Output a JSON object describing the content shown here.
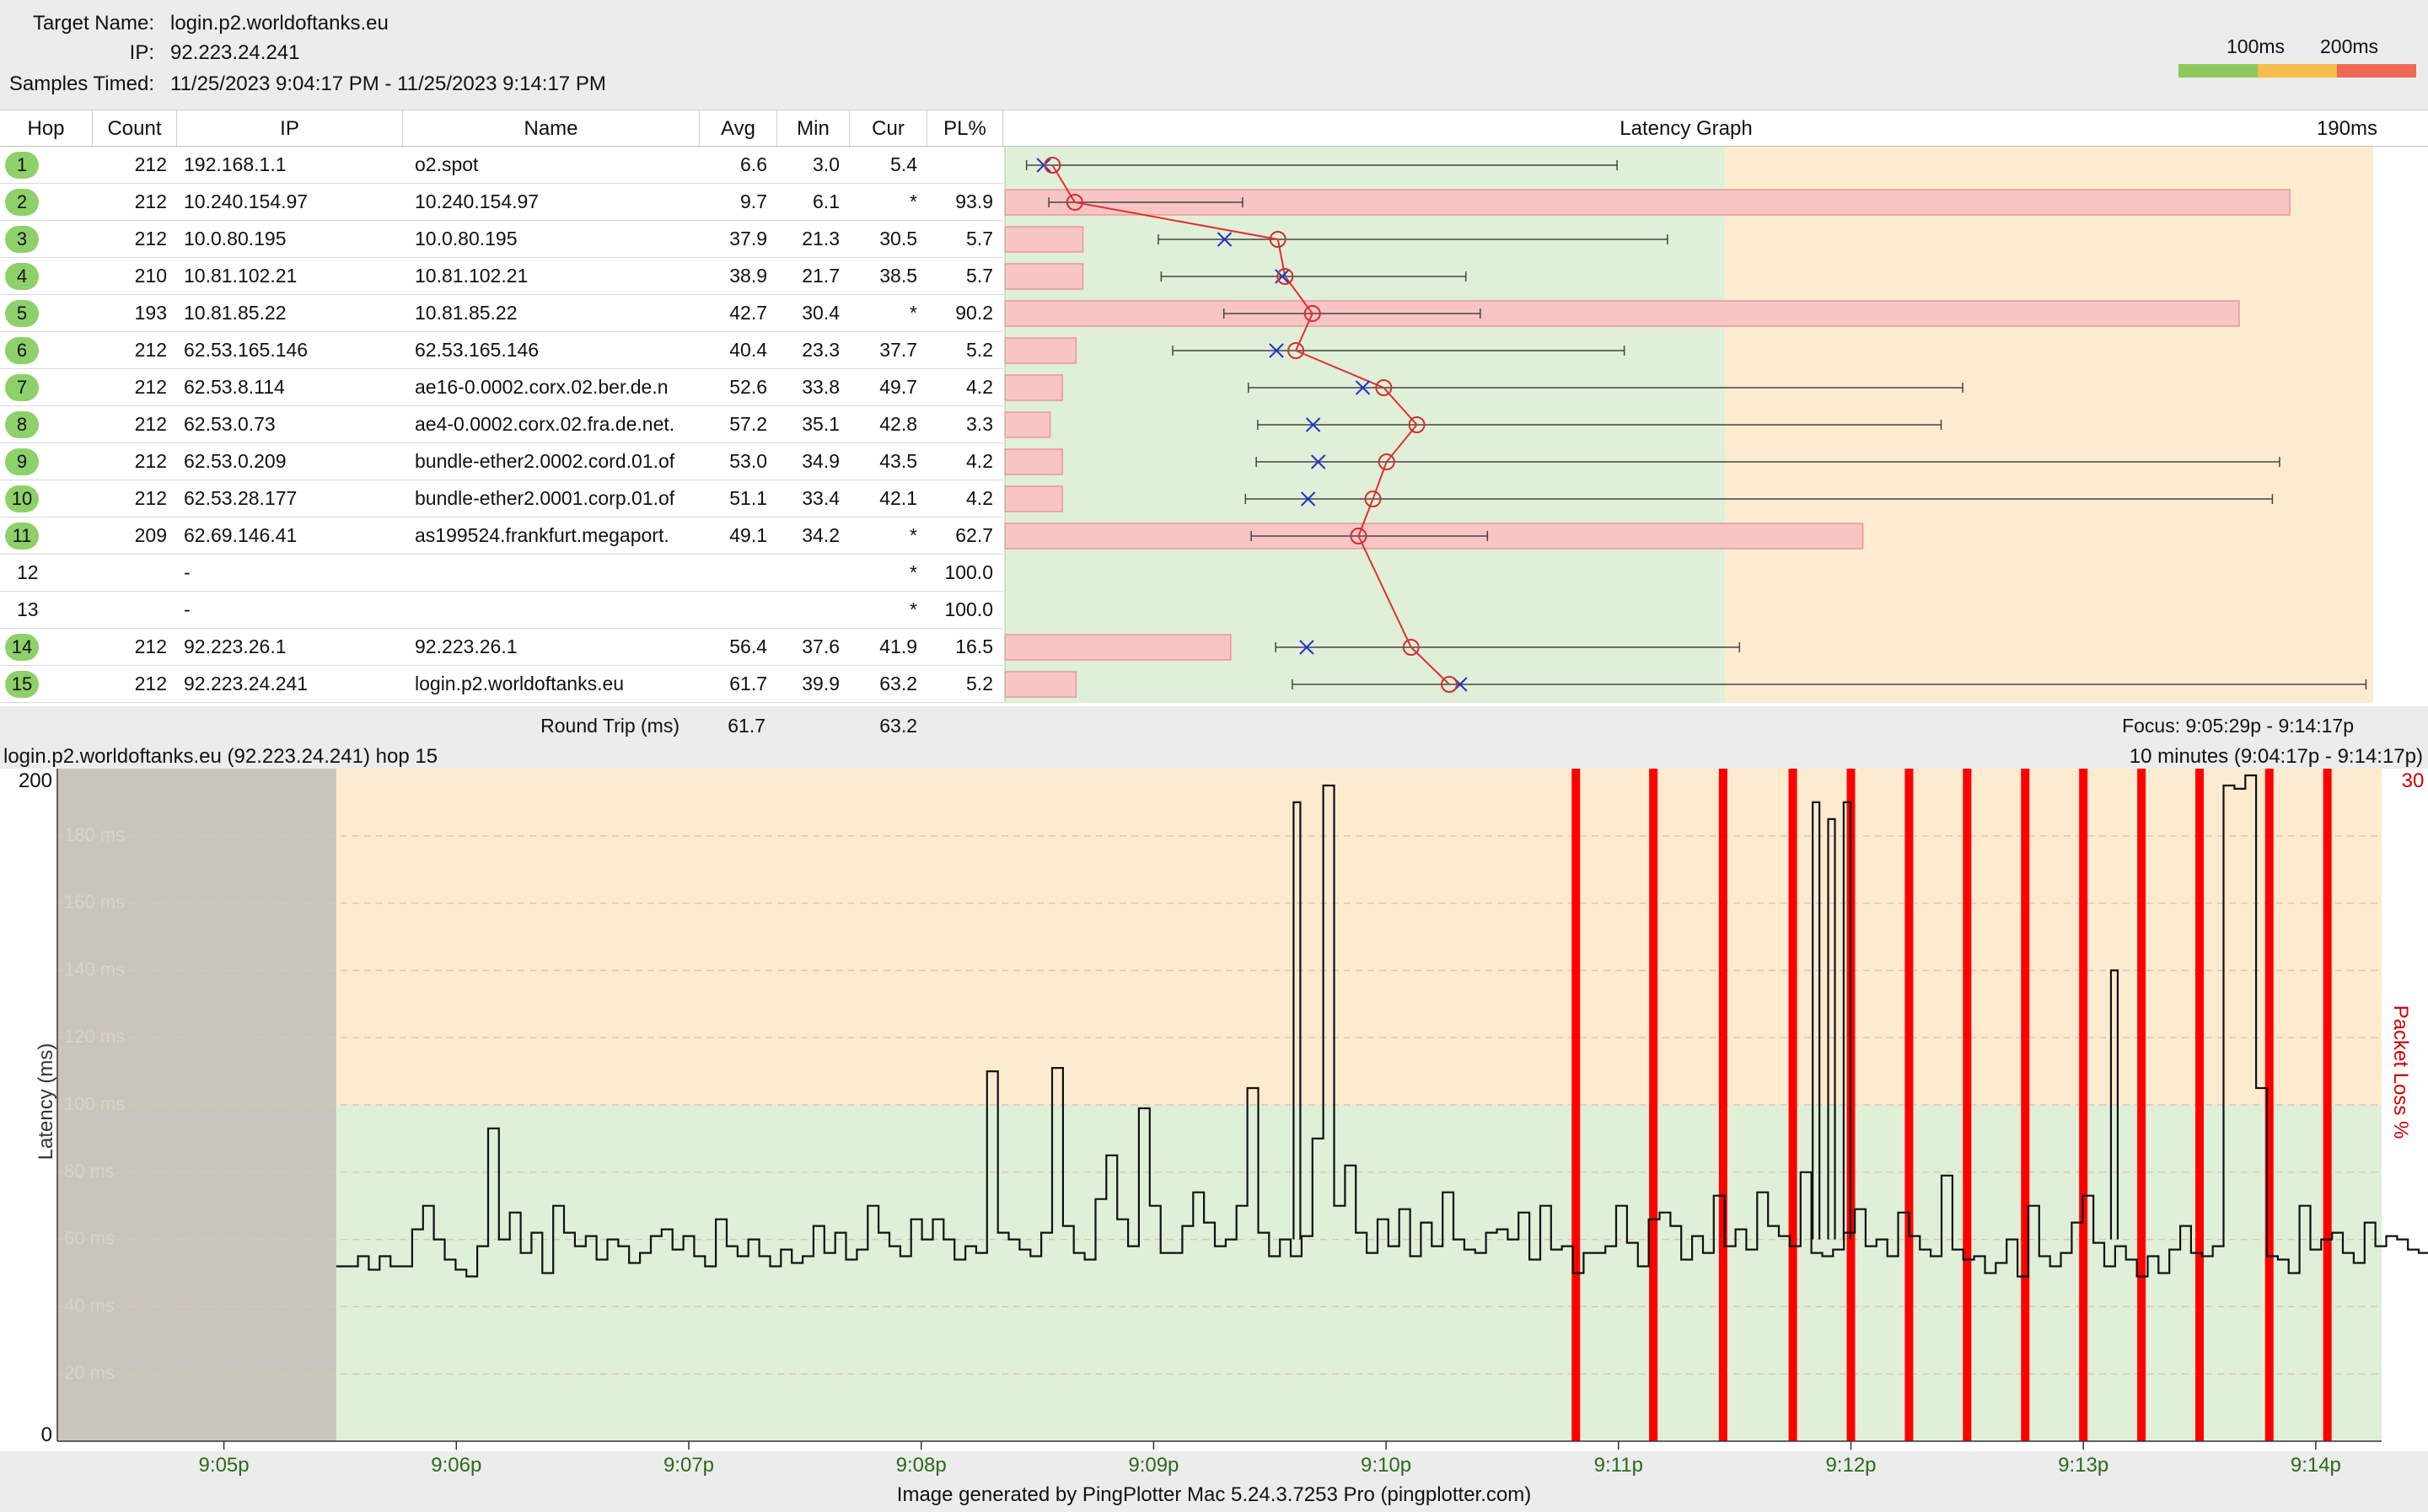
{
  "header": {
    "target_label": "Target Name:",
    "target_value": "login.p2.worldoftanks.eu",
    "ip_label": "IP:",
    "ip_value": "92.223.24.241",
    "samples_label": "Samples Timed:",
    "samples_value": "11/25/2023 9:04:17 PM - 11/25/2023 9:14:17 PM"
  },
  "legend": {
    "label_100": "100ms",
    "label_200": "200ms",
    "colors": [
      "#8ec95e",
      "#f5bf4f",
      "#ef6a54"
    ]
  },
  "columns": {
    "hop": "Hop",
    "count": "Count",
    "ip": "IP",
    "name": "Name",
    "avg": "Avg",
    "min": "Min",
    "cur": "Cur",
    "pl": "PL%",
    "graph": "Latency Graph",
    "graph_scale": "190ms"
  },
  "graph_scale_ms": 190,
  "colors": {
    "good_zone": "#e0efd8",
    "warn_zone": "#fdebd0",
    "loss_bar": "#f8c4c4",
    "hop_badge": "#8ed06a",
    "loss_line": "#ff0000",
    "avg_marker": "#d03030",
    "cur_marker": "#2233cc"
  },
  "hops": [
    {
      "hop": "1",
      "count": "212",
      "ip": "192.168.1.1",
      "name": "o2.spot",
      "avg": "6.6",
      "min": "3.0",
      "cur": "5.4",
      "pl": "",
      "badge": true,
      "avg_ms": 6.6,
      "cur_ms": 5.4,
      "min_ms": 3.0,
      "max_ms": 85,
      "loss": 0
    },
    {
      "hop": "2",
      "count": "212",
      "ip": "10.240.154.97",
      "name": "10.240.154.97",
      "avg": "9.7",
      "min": "6.1",
      "cur": "*",
      "pl": "93.9",
      "badge": true,
      "avg_ms": 9.7,
      "cur_ms": null,
      "min_ms": 6.1,
      "max_ms": 33,
      "loss": 93.9
    },
    {
      "hop": "3",
      "count": "212",
      "ip": "10.0.80.195",
      "name": "10.0.80.195",
      "avg": "37.9",
      "min": "21.3",
      "cur": "30.5",
      "pl": "5.7",
      "badge": true,
      "avg_ms": 37.9,
      "cur_ms": 30.5,
      "min_ms": 21.3,
      "max_ms": 92,
      "loss": 5.7
    },
    {
      "hop": "4",
      "count": "210",
      "ip": "10.81.102.21",
      "name": "10.81.102.21",
      "avg": "38.9",
      "min": "21.7",
      "cur": "38.5",
      "pl": "5.7",
      "badge": true,
      "avg_ms": 38.9,
      "cur_ms": 38.5,
      "min_ms": 21.7,
      "max_ms": 64,
      "loss": 5.7
    },
    {
      "hop": "5",
      "count": "193",
      "ip": "10.81.85.22",
      "name": "10.81.85.22",
      "avg": "42.7",
      "min": "30.4",
      "cur": "*",
      "pl": "90.2",
      "badge": true,
      "avg_ms": 42.7,
      "cur_ms": null,
      "min_ms": 30.4,
      "max_ms": 66,
      "loss": 90.2
    },
    {
      "hop": "6",
      "count": "212",
      "ip": "62.53.165.146",
      "name": "62.53.165.146",
      "avg": "40.4",
      "min": "23.3",
      "cur": "37.7",
      "pl": "5.2",
      "badge": true,
      "avg_ms": 40.4,
      "cur_ms": 37.7,
      "min_ms": 23.3,
      "max_ms": 86,
      "loss": 5.2
    },
    {
      "hop": "7",
      "count": "212",
      "ip": "62.53.8.114",
      "name": "ae16-0.0002.corx.02.ber.de.n",
      "avg": "52.6",
      "min": "33.8",
      "cur": "49.7",
      "pl": "4.2",
      "badge": true,
      "avg_ms": 52.6,
      "cur_ms": 49.7,
      "min_ms": 33.8,
      "max_ms": 133,
      "loss": 4.2
    },
    {
      "hop": "8",
      "count": "212",
      "ip": "62.53.0.73",
      "name": "ae4-0.0002.corx.02.fra.de.net.",
      "avg": "57.2",
      "min": "35.1",
      "cur": "42.8",
      "pl": "3.3",
      "badge": true,
      "avg_ms": 57.2,
      "cur_ms": 42.8,
      "min_ms": 35.1,
      "max_ms": 130,
      "loss": 3.3
    },
    {
      "hop": "9",
      "count": "212",
      "ip": "62.53.0.209",
      "name": "bundle-ether2.0002.cord.01.of",
      "avg": "53.0",
      "min": "34.9",
      "cur": "43.5",
      "pl": "4.2",
      "badge": true,
      "avg_ms": 53.0,
      "cur_ms": 43.5,
      "min_ms": 34.9,
      "max_ms": 177,
      "loss": 4.2
    },
    {
      "hop": "10",
      "count": "212",
      "ip": "62.53.28.177",
      "name": "bundle-ether2.0001.corp.01.of",
      "avg": "51.1",
      "min": "33.4",
      "cur": "42.1",
      "pl": "4.2",
      "badge": true,
      "avg_ms": 51.1,
      "cur_ms": 42.1,
      "min_ms": 33.4,
      "max_ms": 176,
      "loss": 4.2
    },
    {
      "hop": "11",
      "count": "209",
      "ip": "62.69.146.41",
      "name": "as199524.frankfurt.megaport.",
      "avg": "49.1",
      "min": "34.2",
      "cur": "*",
      "pl": "62.7",
      "badge": true,
      "avg_ms": 49.1,
      "cur_ms": null,
      "min_ms": 34.2,
      "max_ms": 67,
      "loss": 62.7
    },
    {
      "hop": "12",
      "count": "",
      "ip": "-",
      "name": "",
      "avg": "",
      "min": "",
      "cur": "*",
      "pl": "100.0",
      "badge": false,
      "avg_ms": null,
      "cur_ms": null,
      "min_ms": null,
      "max_ms": null,
      "loss": 0
    },
    {
      "hop": "13",
      "count": "",
      "ip": "-",
      "name": "",
      "avg": "",
      "min": "",
      "cur": "*",
      "pl": "100.0",
      "badge": false,
      "avg_ms": null,
      "cur_ms": null,
      "min_ms": null,
      "max_ms": null,
      "loss": 0
    },
    {
      "hop": "14",
      "count": "212",
      "ip": "92.223.26.1",
      "name": "92.223.26.1",
      "avg": "56.4",
      "min": "37.6",
      "cur": "41.9",
      "pl": "16.5",
      "badge": true,
      "avg_ms": 56.4,
      "cur_ms": 41.9,
      "min_ms": 37.6,
      "max_ms": 102,
      "loss": 16.5
    },
    {
      "hop": "15",
      "count": "212",
      "ip": "92.223.24.241",
      "name": "login.p2.worldoftanks.eu",
      "avg": "61.7",
      "min": "39.9",
      "cur": "63.2",
      "pl": "5.2",
      "badge": true,
      "avg_ms": 61.7,
      "cur_ms": 63.2,
      "min_ms": 39.9,
      "max_ms": 189,
      "loss": 5.2
    }
  ],
  "round_trip": {
    "label": "Round Trip (ms)",
    "avg": "61.7",
    "cur": "63.2"
  },
  "focus": "Focus: 9:05:29p - 9:14:17p",
  "timeline": {
    "title": "login.p2.worldoftanks.eu (92.223.24.241) hop 15",
    "range": "10 minutes (9:04:17p - 9:14:17p)",
    "y_axis_label": "Latency (ms)",
    "y2_axis_label": "Packet Loss %",
    "y_top": "200",
    "y_bottom": "0",
    "y2_top": "30",
    "gridline_labels": [
      "180 ms",
      "160 ms",
      "140 ms",
      "120 ms",
      "100 ms",
      "80 ms",
      "60 ms",
      "40 ms",
      "20 ms"
    ],
    "x_ticks": [
      "9:05p",
      "9:06p",
      "9:07p",
      "9:08p",
      "9:09p",
      "9:10p",
      "9:11p",
      "9:12p",
      "9:13p",
      "9:14p"
    ],
    "footer": "Image generated by PingPlotter Mac 5.24.3.7253 Pro (pingplotter.com)"
  },
  "chart_data": {
    "type": "line",
    "title": "login.p2.worldoftanks.eu (92.223.24.241) hop 15",
    "xlabel": "",
    "ylabel": "Latency (ms)",
    "ylim": [
      0,
      200
    ],
    "y2label": "Packet Loss %",
    "y2lim": [
      0,
      30
    ],
    "x_range": [
      "9:04:17p",
      "9:14:17p"
    ],
    "x_ticks": [
      "9:05p",
      "9:06p",
      "9:07p",
      "9:08p",
      "9:09p",
      "9:10p",
      "9:11p",
      "9:12p",
      "9:13p",
      "9:14p"
    ],
    "grid": true,
    "focus_start_sec": 72,
    "latency_series": {
      "name": "",
      "sample_interval_sec": 2.8,
      "start_sec": 72,
      "values": [
        52,
        52,
        55,
        51,
        55,
        52,
        52,
        63,
        70,
        60,
        54,
        51,
        49,
        58,
        93,
        60,
        68,
        56,
        62,
        50,
        70,
        62,
        58,
        61,
        54,
        60,
        58,
        53,
        56,
        61,
        63,
        57,
        61,
        55,
        52,
        66,
        58,
        55,
        60,
        55,
        52,
        57,
        53,
        55,
        64,
        56,
        62,
        54,
        57,
        70,
        62,
        58,
        55,
        66,
        60,
        66,
        60,
        54,
        58,
        56,
        110,
        62,
        60,
        57,
        55,
        62,
        111,
        64,
        56,
        54,
        72,
        85,
        66,
        58,
        99,
        70,
        56,
        56,
        64,
        74,
        65,
        58,
        60,
        70,
        105,
        62,
        55,
        60,
        55,
        61,
        90,
        195,
        70,
        82,
        62,
        56,
        66,
        58,
        69,
        55,
        65,
        58,
        74,
        60,
        57,
        56,
        62,
        63,
        60,
        68,
        54,
        70,
        57,
        58,
        50,
        56,
        56,
        58,
        70,
        59,
        52,
        66,
        68,
        64,
        54,
        61,
        56,
        73,
        58,
        63,
        57,
        74,
        64,
        61,
        58,
        80,
        56,
        55,
        57,
        62,
        69,
        58,
        60,
        55,
        68,
        61,
        57,
        55,
        79,
        57,
        54,
        55,
        50,
        53,
        60,
        49,
        70,
        55,
        52,
        56,
        65,
        73,
        59,
        52,
        58,
        54,
        49,
        55,
        50,
        57,
        64,
        56,
        55,
        58,
        195,
        194,
        198,
        105,
        55,
        54,
        50,
        70,
        57,
        60,
        62,
        56,
        53,
        65,
        58,
        61,
        60,
        57,
        56,
        63,
        55,
        56,
        60,
        76,
        57,
        60,
        56,
        54,
        56,
        63,
        55,
        58,
        80,
        62,
        58,
        59,
        58,
        60,
        57,
        55,
        64,
        63,
        60,
        56,
        54,
        58,
        66,
        60,
        60,
        62,
        58,
        59,
        62,
        55,
        55,
        63,
        60,
        55,
        53,
        57,
        64,
        54,
        62,
        52,
        50,
        56,
        63,
        53,
        53,
        61,
        60,
        47,
        51,
        64,
        58,
        55,
        58,
        80,
        80,
        55,
        62,
        55,
        58,
        63,
        60,
        57,
        57
      ],
      "spikes": [
        {
          "sec": 320,
          "value": 190
        },
        {
          "sec": 454,
          "value": 190
        },
        {
          "sec": 458,
          "value": 185
        },
        {
          "sec": 462,
          "value": 190
        },
        {
          "sec": 531,
          "value": 140
        }
      ]
    },
    "packet_loss_events_sec": [
      392,
      412,
      430,
      448,
      463,
      478,
      493,
      508,
      523,
      538,
      553,
      571,
      586
    ]
  }
}
